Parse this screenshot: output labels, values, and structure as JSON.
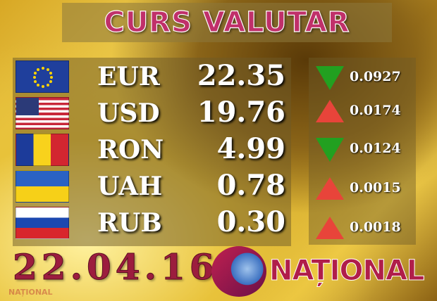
{
  "title": "CURS VALUTAR",
  "rates": [
    {
      "code": "EUR",
      "value": "22.35",
      "change": "0.0927",
      "direction": "down",
      "flag": "eu-flag"
    },
    {
      "code": "USD",
      "value": "19.76",
      "change": "0.0174",
      "direction": "up",
      "flag": "us-flag"
    },
    {
      "code": "RON",
      "value": "4.99",
      "change": "0.0124",
      "direction": "down",
      "flag": "romania-flag"
    },
    {
      "code": "UAH",
      "value": "0.78",
      "change": "0.0015",
      "direction": "up",
      "flag": "ukraine-flag"
    },
    {
      "code": "RUB",
      "value": "0.30",
      "change": "0.0018",
      "direction": "up",
      "flag": "russia-flag"
    }
  ],
  "date": "22.04.16",
  "brand": "NAȚIONAL",
  "watermark": "NAȚIONAL",
  "colors": {
    "up": "#e8443a",
    "down": "#22a020",
    "brand": "#b01e4a"
  }
}
